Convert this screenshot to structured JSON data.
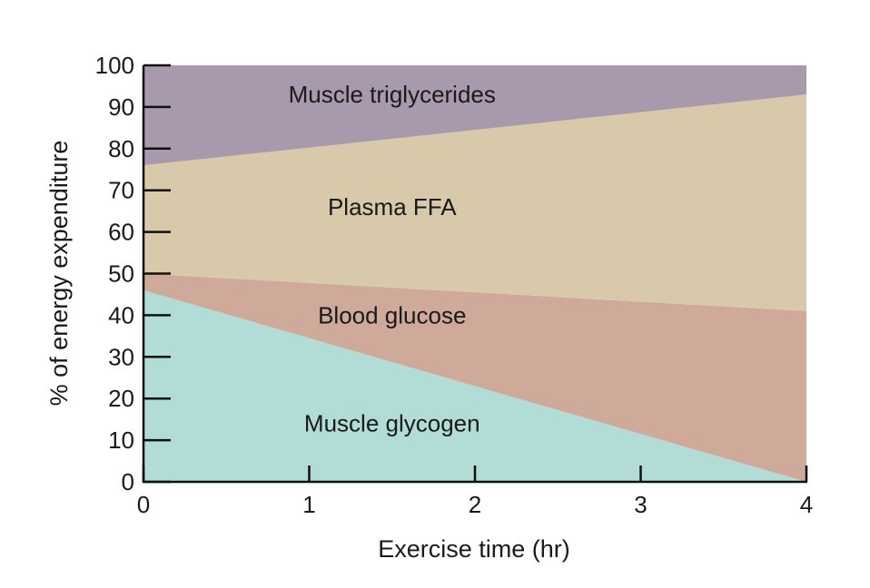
{
  "chart_data": {
    "type": "area",
    "title": "",
    "xlabel": "Exercise time (hr)",
    "ylabel": "% of energy expenditure",
    "xlim": [
      0,
      4
    ],
    "ylim": [
      0,
      100
    ],
    "x_ticks": [
      "0",
      "1",
      "2",
      "3",
      "4"
    ],
    "y_ticks": [
      "0",
      "10",
      "20",
      "30",
      "40",
      "50",
      "60",
      "70",
      "80",
      "90",
      "100"
    ],
    "grid": false,
    "stacked": true,
    "x": [
      0,
      4
    ],
    "series": [
      {
        "name": "Muscle glycogen",
        "values": [
          46,
          0
        ],
        "color": "#b2dcd6"
      },
      {
        "name": "Blood glucose",
        "values": [
          4,
          41
        ],
        "color": "#cfa999"
      },
      {
        "name": "Plasma FFA",
        "values": [
          26,
          52
        ],
        "color": "#d7c9a9"
      },
      {
        "name": "Muscle triglycerides",
        "values": [
          24,
          7
        ],
        "color": "#a899ac"
      }
    ]
  }
}
